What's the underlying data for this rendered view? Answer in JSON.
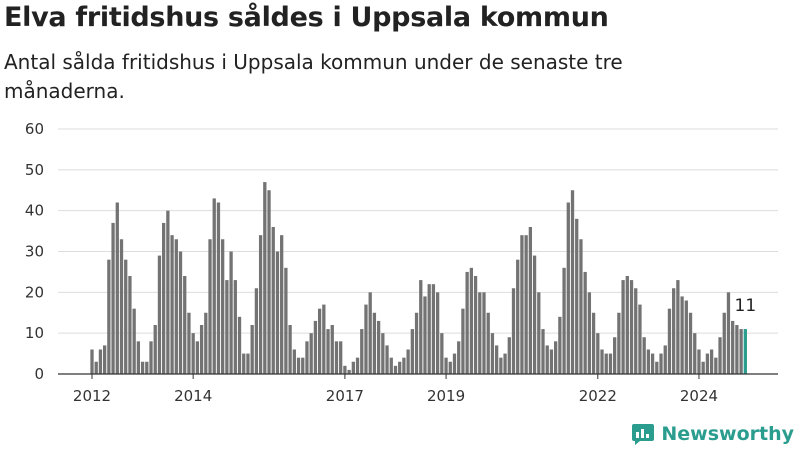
{
  "header": {
    "title": "Elva fritidshus såldes i Uppsala kommun",
    "subtitle": "Antal sålda fritidshus i Uppsala kommun under de senaste tre månaderna."
  },
  "brand": {
    "name": "Newsworthy",
    "color": "#2a9d8f"
  },
  "colors": {
    "bar": "#737373",
    "highlight": "#2a9d8f",
    "grid": "#dddddd",
    "axis": "#333333"
  },
  "chart_data": {
    "type": "bar",
    "title": "Elva fritidshus såldes i Uppsala kommun",
    "ylim": [
      0,
      60
    ],
    "yticks": [
      0,
      10,
      20,
      30,
      40,
      50,
      60
    ],
    "grid": true,
    "x_start": "2012-01",
    "xtick_labels": [
      "2012",
      "2014",
      "2017",
      "2019",
      "2022",
      "2024"
    ],
    "xtick_positions": [
      "2012-01",
      "2014-01",
      "2017-01",
      "2019-01",
      "2022-01",
      "2024-01"
    ],
    "values": [
      6,
      3,
      6,
      7,
      28,
      37,
      42,
      33,
      28,
      24,
      16,
      8,
      3,
      3,
      8,
      12,
      29,
      37,
      40,
      34,
      33,
      30,
      24,
      15,
      10,
      8,
      12,
      15,
      33,
      43,
      42,
      33,
      23,
      30,
      23,
      14,
      5,
      5,
      12,
      21,
      34,
      47,
      45,
      36,
      30,
      34,
      26,
      12,
      6,
      4,
      4,
      8,
      10,
      13,
      16,
      17,
      11,
      12,
      8,
      8,
      2,
      1,
      3,
      4,
      11,
      17,
      20,
      15,
      13,
      10,
      7,
      4,
      2,
      3,
      4,
      6,
      11,
      15,
      23,
      19,
      22,
      22,
      20,
      10,
      4,
      3,
      5,
      8,
      16,
      25,
      26,
      24,
      20,
      20,
      15,
      10,
      7,
      4,
      5,
      9,
      21,
      28,
      34,
      34,
      36,
      29,
      20,
      11,
      7,
      6,
      8,
      14,
      26,
      42,
      45,
      38,
      33,
      25,
      20,
      15,
      10,
      6,
      5,
      5,
      9,
      15,
      23,
      24,
      23,
      21,
      17,
      9,
      6,
      5,
      3,
      5,
      7,
      16,
      21,
      23,
      19,
      18,
      15,
      10,
      6,
      3,
      5,
      6,
      4,
      9,
      15,
      20,
      13,
      12,
      11,
      11
    ],
    "highlight_last": 1,
    "annotation": {
      "text": "11",
      "index": 155
    }
  }
}
